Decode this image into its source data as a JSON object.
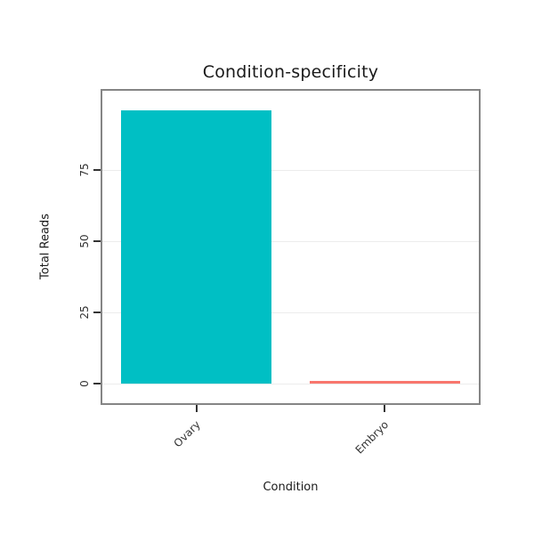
{
  "chart_data": {
    "type": "bar",
    "title": "Condition-specificity",
    "xlabel": "Condition",
    "ylabel": "Total Reads",
    "categories": [
      "Ovary",
      "Embryo"
    ],
    "values": [
      96,
      1
    ],
    "bar_colors": [
      "#00BFC4",
      "#F8766D"
    ],
    "yticks": [
      0,
      25,
      50,
      75
    ],
    "ylim": [
      0,
      104
    ],
    "grid": "horizontal-major-light",
    "legend": "none",
    "panel_border_color": "#858585"
  }
}
